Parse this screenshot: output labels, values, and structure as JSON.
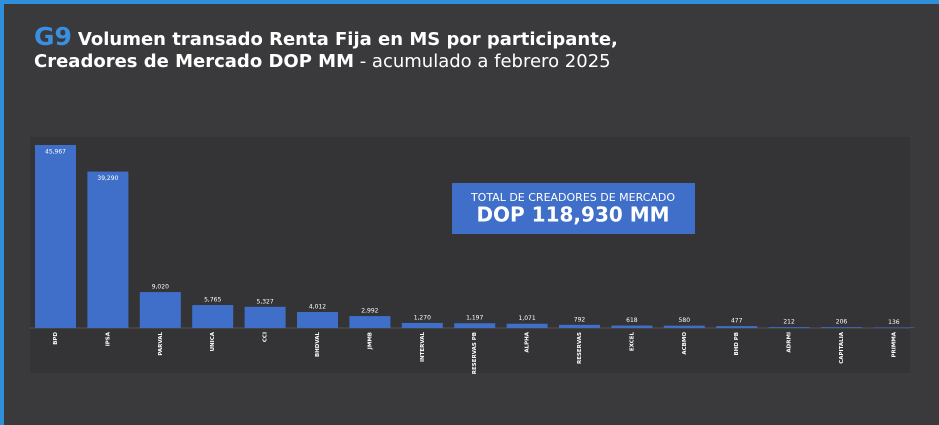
{
  "chart_data": {
    "type": "bar",
    "title_badge": "G9",
    "title_line1": "Volumen transado Renta Fija en MS por participante,",
    "title_line2_bold": "Creadores de Mercado DOP MM",
    "title_line2_rest": " - acumulado a febrero 2025",
    "annotation_label": "TOTAL DE CREADORES DE MERCADO",
    "annotation_value": "DOP 118,930 MM",
    "color": "#3f6fc8",
    "categories": [
      "BPD",
      "IPSA",
      "PARVAL",
      "UNICA",
      "CCI",
      "BHDVAL",
      "JMMB",
      "INTERVAL",
      "RESERVAS PB",
      "ALPHA",
      "RESERVAS",
      "EXCEL",
      "ACBMO",
      "BHD PB",
      "ADRMI",
      "CAPITALIA",
      "PRIMMA"
    ],
    "values": [
      45967,
      39290,
      9020,
      5765,
      5327,
      4012,
      2992,
      1270,
      1197,
      1071,
      792,
      618,
      580,
      477,
      212,
      206,
      136
    ],
    "value_labels": [
      "45,967",
      "39,290",
      "9,020",
      "5,765",
      "5,327",
      "4,012",
      "2,992",
      "1,270",
      "1,197",
      "1,071",
      "792",
      "618",
      "580",
      "477",
      "212",
      "206",
      "136"
    ]
  }
}
